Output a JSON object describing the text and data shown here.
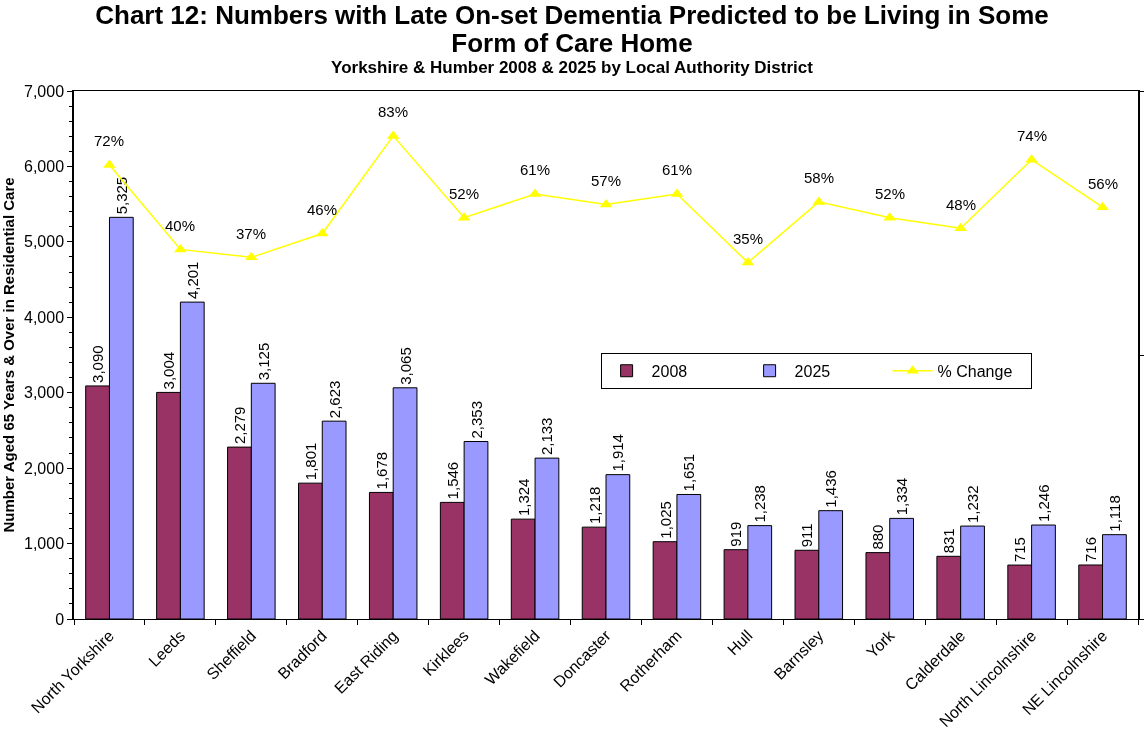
{
  "chart_data": {
    "type": "bar",
    "title": "Chart 12: Numbers with Late On-set Dementia Predicted to be Living in Some Form of Care Home",
    "subtitle": "Yorkshire & Humber 2008 & 2025 by Local Authority District",
    "ylabel": "Number Aged 65 Years & Over in Residential Care",
    "categories": [
      "North Yorkshire",
      "Leeds",
      "Sheffield",
      "Bradford",
      "East Riding",
      "Kirklees",
      "Wakefield",
      "Doncaster",
      "Rotherham",
      "Hull",
      "Barnsley",
      "York",
      "Calderdale",
      "North Lincolnshire",
      "NE Lincolnshire"
    ],
    "series": [
      {
        "name": "2008",
        "color": "#993366",
        "values": [
          3090,
          3004,
          2279,
          1801,
          1678,
          1546,
          1324,
          1218,
          1025,
          919,
          911,
          880,
          831,
          715,
          716
        ],
        "value_labels": [
          "3,090",
          "3,004",
          "2,279",
          "1,801",
          "1,678",
          "1,546",
          "1,324",
          "1,218",
          "1,025",
          "919",
          "911",
          "880",
          "831",
          "715",
          "716"
        ]
      },
      {
        "name": "2025",
        "color": "#9999ff",
        "values": [
          5325,
          4201,
          3125,
          2623,
          3065,
          2353,
          2133,
          1914,
          1651,
          1238,
          1436,
          1334,
          1232,
          1246,
          1118
        ],
        "value_labels": [
          "5,325",
          "4,201",
          "3,125",
          "2,623",
          "3,065",
          "2,353",
          "2,133",
          "1,914",
          "1,651",
          "1,238",
          "1,436",
          "1,334",
          "1,232",
          "1,246",
          "1,118"
        ]
      },
      {
        "name": "% Change",
        "type": "line",
        "axis": "y2",
        "color": "#ffff00",
        "marker": "triangle",
        "line_style": "solid",
        "values": [
          72,
          40,
          37,
          46,
          83,
          52,
          61,
          57,
          61,
          35,
          58,
          52,
          48,
          74,
          56
        ],
        "value_labels": [
          "72%",
          "40%",
          "37%",
          "46%",
          "83%",
          "52%",
          "61%",
          "57%",
          "61%",
          "35%",
          "58%",
          "52%",
          "48%",
          "74%",
          "56%"
        ]
      }
    ],
    "ylim": [
      0,
      7000
    ],
    "yticks": [
      0,
      {
        "value": 200,
        "label": null
      },
      {
        "value": 400,
        "label": null
      },
      {
        "value": 600,
        "label": null
      },
      {
        "value": 800,
        "label": null
      },
      {
        "value": 1000,
        "label": "1,000"
      },
      {
        "value": 1200,
        "label": null
      },
      {
        "value": 1400,
        "label": null
      },
      {
        "value": 1600,
        "label": null
      },
      {
        "value": 1800,
        "label": null
      },
      {
        "value": 2000,
        "label": "2,000"
      },
      {
        "value": 2200,
        "label": null
      },
      {
        "value": 2400,
        "label": null
      },
      {
        "value": 2600,
        "label": null
      },
      {
        "value": 2800,
        "label": null
      },
      {
        "value": 3000,
        "label": "3,000"
      },
      {
        "value": 3200,
        "label": null
      },
      {
        "value": 3400,
        "label": null
      },
      {
        "value": 3600,
        "label": null
      },
      {
        "value": 3800,
        "label": null
      },
      {
        "value": 4000,
        "label": "4,000"
      },
      {
        "value": 4200,
        "label": null
      },
      {
        "value": 4400,
        "label": null
      },
      {
        "value": 4600,
        "label": null
      },
      {
        "value": 4800,
        "label": null
      },
      {
        "value": 5000,
        "label": "5,000"
      },
      {
        "value": 5200,
        "label": null
      },
      {
        "value": 5400,
        "label": null
      },
      {
        "value": 5600,
        "label": null
      },
      {
        "value": 5800,
        "label": null
      },
      {
        "value": 6000,
        "label": "6,000"
      },
      {
        "value": 6200,
        "label": null
      },
      {
        "value": 6400,
        "label": null
      },
      {
        "value": 6600,
        "label": null
      },
      {
        "value": 6800,
        "label": null
      },
      {
        "value": 7000,
        "label": "7,000"
      }
    ],
    "y2lim": [
      -100,
      100
    ],
    "y2ticks": [
      {
        "value": -100,
        "label": null
      },
      {
        "value": 0,
        "label": null
      },
      {
        "value": 100,
        "label": null
      }
    ],
    "legend": "right"
  }
}
